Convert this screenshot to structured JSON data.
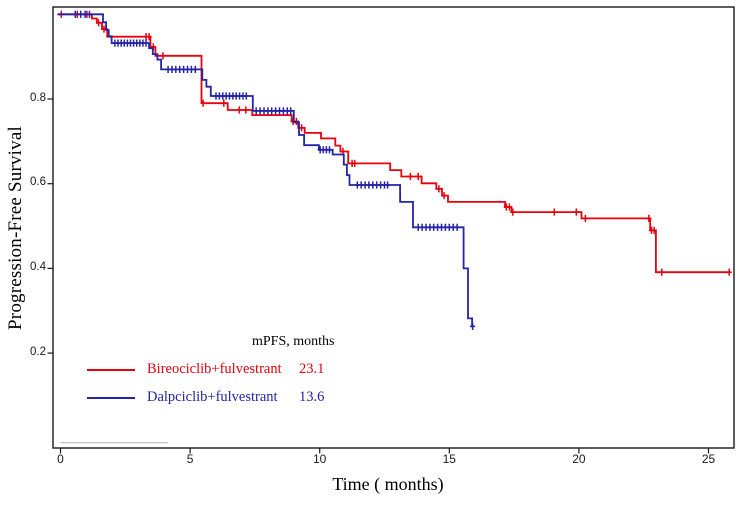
{
  "figure": {
    "y_axis_title": "Progression-Free Survival",
    "x_axis_title": "Time ( months)"
  },
  "legend": {
    "header": "mPFS, months",
    "rows": [
      {
        "label": "Bireociclib+fulvestrant",
        "value": "23.1",
        "color": "#e8000d"
      },
      {
        "label": "Dalpciclib+fulvestrant",
        "value": "13.6",
        "color": "#2424a8"
      }
    ]
  },
  "chart_data": {
    "type": "line",
    "subtype": "kaplan-meier-step-curve",
    "title": "",
    "xlabel": "Time ( months)",
    "ylabel": "Progression-Free Survival",
    "x_ticks": [
      0,
      5,
      10,
      15,
      20,
      25
    ],
    "y_ticks": [
      0.2,
      0.4,
      0.6,
      0.8
    ],
    "xlim": [
      -0.35,
      26
    ],
    "ylim": [
      -0.025,
      1.02
    ],
    "grid": false,
    "legend_position": "inside-lower-left",
    "axis_color": "#1a1a1a",
    "series": [
      {
        "name": "Bireociclib+fulvestrant",
        "median_pfs_months": 23.1,
        "color": "#e8000d",
        "end_time": 25.8,
        "steps": [
          [
            0,
            1.0
          ],
          [
            1.21,
            0.99
          ],
          [
            1.4,
            0.98
          ],
          [
            1.6,
            0.965
          ],
          [
            1.8,
            0.947
          ],
          [
            3.47,
            0.923
          ],
          [
            3.66,
            0.902
          ],
          [
            5.44,
            0.79
          ],
          [
            6.45,
            0.774
          ],
          [
            7.4,
            0.762
          ],
          [
            8.92,
            0.747
          ],
          [
            9.17,
            0.732
          ],
          [
            9.42,
            0.72
          ],
          [
            10.05,
            0.707
          ],
          [
            10.6,
            0.69
          ],
          [
            10.8,
            0.676
          ],
          [
            11.1,
            0.648
          ],
          [
            12.72,
            0.632
          ],
          [
            13.15,
            0.617
          ],
          [
            13.93,
            0.601
          ],
          [
            14.5,
            0.588
          ],
          [
            14.72,
            0.572
          ],
          [
            14.95,
            0.557
          ],
          [
            17.15,
            0.545
          ],
          [
            17.4,
            0.533
          ],
          [
            20.1,
            0.518
          ],
          [
            22.75,
            0.49
          ],
          [
            22.97,
            0.391
          ]
        ],
        "censors": [
          [
            0.03,
            1.0
          ],
          [
            0.65,
            1.0
          ],
          [
            1.02,
            1.0
          ],
          [
            1.47,
            0.98
          ],
          [
            1.68,
            0.965
          ],
          [
            3.3,
            0.947
          ],
          [
            3.42,
            0.947
          ],
          [
            3.58,
            0.923
          ],
          [
            3.95,
            0.902
          ],
          [
            5.5,
            0.79
          ],
          [
            6.3,
            0.79
          ],
          [
            6.9,
            0.774
          ],
          [
            7.15,
            0.774
          ],
          [
            8.97,
            0.747
          ],
          [
            9.1,
            0.747
          ],
          [
            9.3,
            0.732
          ],
          [
            10.9,
            0.676
          ],
          [
            11.25,
            0.648
          ],
          [
            11.35,
            0.648
          ],
          [
            13.5,
            0.617
          ],
          [
            13.8,
            0.617
          ],
          [
            14.6,
            0.588
          ],
          [
            14.8,
            0.572
          ],
          [
            17.2,
            0.545
          ],
          [
            17.32,
            0.545
          ],
          [
            17.45,
            0.533
          ],
          [
            19.05,
            0.533
          ],
          [
            19.9,
            0.533
          ],
          [
            20.25,
            0.518
          ],
          [
            22.7,
            0.518
          ],
          [
            22.8,
            0.49
          ],
          [
            22.9,
            0.49
          ],
          [
            23.2,
            0.391
          ],
          [
            25.8,
            0.391
          ]
        ]
      },
      {
        "name": "Dalpciclib+fulvestrant",
        "median_pfs_months": 13.6,
        "color": "#2424a8",
        "end_time": 15.95,
        "steps": [
          [
            0,
            1.0
          ],
          [
            1.64,
            0.981
          ],
          [
            1.76,
            0.963
          ],
          [
            1.86,
            0.948
          ],
          [
            1.97,
            0.932
          ],
          [
            3.42,
            0.92
          ],
          [
            3.56,
            0.906
          ],
          [
            3.74,
            0.893
          ],
          [
            3.88,
            0.87
          ],
          [
            5.47,
            0.845
          ],
          [
            5.63,
            0.829
          ],
          [
            5.8,
            0.807
          ],
          [
            7.42,
            0.772
          ],
          [
            9.0,
            0.745
          ],
          [
            9.2,
            0.715
          ],
          [
            9.4,
            0.691
          ],
          [
            9.97,
            0.68
          ],
          [
            10.5,
            0.669
          ],
          [
            10.93,
            0.645
          ],
          [
            11.05,
            0.62
          ],
          [
            11.15,
            0.597
          ],
          [
            13.1,
            0.557
          ],
          [
            13.6,
            0.497
          ],
          [
            15.55,
            0.4
          ],
          [
            15.72,
            0.282
          ],
          [
            15.88,
            0.263
          ]
        ],
        "censors": [
          [
            0.57,
            1.0
          ],
          [
            0.78,
            1.0
          ],
          [
            0.95,
            1.0
          ],
          [
            1.12,
            1.0
          ],
          [
            2.1,
            0.932
          ],
          [
            2.22,
            0.932
          ],
          [
            2.34,
            0.932
          ],
          [
            2.46,
            0.932
          ],
          [
            2.58,
            0.932
          ],
          [
            2.7,
            0.932
          ],
          [
            2.82,
            0.932
          ],
          [
            2.94,
            0.932
          ],
          [
            3.06,
            0.932
          ],
          [
            3.18,
            0.932
          ],
          [
            3.3,
            0.932
          ],
          [
            4.15,
            0.87
          ],
          [
            4.3,
            0.87
          ],
          [
            4.45,
            0.87
          ],
          [
            4.6,
            0.87
          ],
          [
            4.75,
            0.87
          ],
          [
            4.9,
            0.87
          ],
          [
            5.05,
            0.87
          ],
          [
            5.2,
            0.87
          ],
          [
            6.0,
            0.807
          ],
          [
            6.13,
            0.807
          ],
          [
            6.26,
            0.807
          ],
          [
            6.39,
            0.807
          ],
          [
            6.52,
            0.807
          ],
          [
            6.65,
            0.807
          ],
          [
            6.78,
            0.807
          ],
          [
            6.91,
            0.807
          ],
          [
            7.04,
            0.807
          ],
          [
            7.17,
            0.807
          ],
          [
            7.55,
            0.772
          ],
          [
            7.7,
            0.772
          ],
          [
            7.85,
            0.772
          ],
          [
            8.0,
            0.772
          ],
          [
            8.15,
            0.772
          ],
          [
            8.3,
            0.772
          ],
          [
            8.45,
            0.772
          ],
          [
            8.6,
            0.772
          ],
          [
            8.75,
            0.772
          ],
          [
            8.88,
            0.772
          ],
          [
            10.02,
            0.68
          ],
          [
            10.14,
            0.68
          ],
          [
            10.26,
            0.68
          ],
          [
            10.38,
            0.68
          ],
          [
            11.45,
            0.597
          ],
          [
            11.6,
            0.597
          ],
          [
            11.75,
            0.597
          ],
          [
            11.9,
            0.597
          ],
          [
            12.05,
            0.597
          ],
          [
            12.2,
            0.597
          ],
          [
            12.35,
            0.597
          ],
          [
            12.5,
            0.597
          ],
          [
            12.62,
            0.597
          ],
          [
            13.8,
            0.497
          ],
          [
            13.95,
            0.497
          ],
          [
            14.1,
            0.497
          ],
          [
            14.25,
            0.497
          ],
          [
            14.4,
            0.497
          ],
          [
            14.55,
            0.497
          ],
          [
            14.7,
            0.497
          ],
          [
            14.85,
            0.497
          ],
          [
            15.0,
            0.497
          ],
          [
            15.15,
            0.497
          ],
          [
            15.3,
            0.497
          ],
          [
            15.9,
            0.263
          ]
        ]
      }
    ],
    "annotations": {
      "baseline_segment": {
        "t_start": 0,
        "t_end": 4.15,
        "color": "#b3b3b3"
      }
    }
  }
}
